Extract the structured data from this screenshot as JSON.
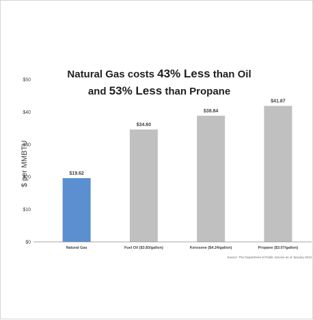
{
  "chart_data": {
    "type": "bar",
    "title_parts": [
      [
        {
          "text": "Natural Gas costs ",
          "emph": false
        },
        {
          "text": "43% Less",
          "emph": true
        },
        {
          "text": " than Oil",
          "emph": false
        }
      ],
      [
        {
          "text": "and ",
          "emph": false
        },
        {
          "text": "53% Less",
          "emph": true
        },
        {
          "text": " than Propane",
          "emph": false
        }
      ]
    ],
    "ylabel": "$ per MMBTU",
    "ylim": [
      0,
      50
    ],
    "yticks": [
      0,
      10,
      20,
      30,
      40,
      50
    ],
    "ytick_labels": [
      "$0",
      "$10",
      "$20",
      "$30",
      "$40",
      "$50"
    ],
    "categories": [
      "Natural Gas",
      "Fuel Oil ($3.83/gallon)",
      "Kerosene ($4.24/gallon)",
      "Propane ($3.07/gallon)"
    ],
    "values": [
      19.62,
      34.6,
      38.84,
      41.87
    ],
    "data_labels": [
      "$19.62",
      "$34.60",
      "$38.84",
      "$41.87"
    ],
    "bar_colors": [
      "#5b8fd0",
      "#c0c0c0",
      "#c0c0c0",
      "#c0c0c0"
    ],
    "source": "Source: The Department of Public Service as of January 2013",
    "grid": false,
    "legend": "none"
  }
}
